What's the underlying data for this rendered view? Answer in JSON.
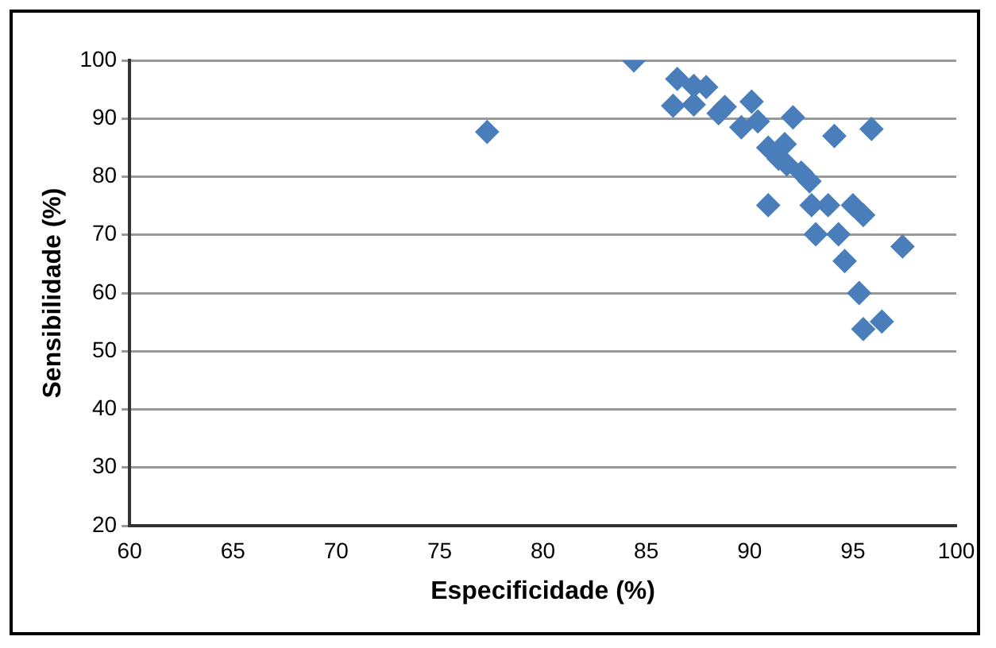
{
  "chart_data": {
    "type": "scatter",
    "xlabel": "Especificidade (%)",
    "ylabel": "Sensibilidade (%)",
    "series": [
      {
        "color": "#4a7ebb",
        "x": [
          84.4,
          77.3,
          86.5,
          87.3,
          87.9,
          86.3,
          87.3,
          88.8,
          88.5,
          90.1,
          92.1,
          89.6,
          90.4,
          94.1,
          95.9,
          90.9,
          91.7,
          91.4,
          91.8,
          92.5,
          92.9,
          90.9,
          93.0,
          93.8,
          95.0,
          95.5,
          93.2,
          94.3,
          97.4,
          94.6,
          95.3,
          95.5,
          96.4
        ],
        "values": [
          100,
          87.7,
          96.8,
          95.6,
          95.4,
          92.2,
          92.4,
          92.0,
          90.9,
          92.9,
          90.2,
          88.5,
          89.5,
          87.0,
          88.2,
          85.0,
          85.6,
          83.1,
          82.1,
          80.7,
          79.2,
          75.1,
          75.1,
          75.1,
          75.1,
          73.4,
          70.1,
          70.1,
          68.0,
          65.5,
          60.0,
          53.8,
          55.1
        ]
      }
    ],
    "xlim": [
      60,
      100
    ],
    "xticks": [
      60,
      65,
      70,
      75,
      80,
      85,
      90,
      95,
      100
    ],
    "ylim": [
      20,
      100
    ],
    "yticks": [
      20,
      30,
      40,
      50,
      60,
      70,
      80,
      90,
      100
    ],
    "grid": "y",
    "legend": false,
    "marker": "diamond"
  }
}
